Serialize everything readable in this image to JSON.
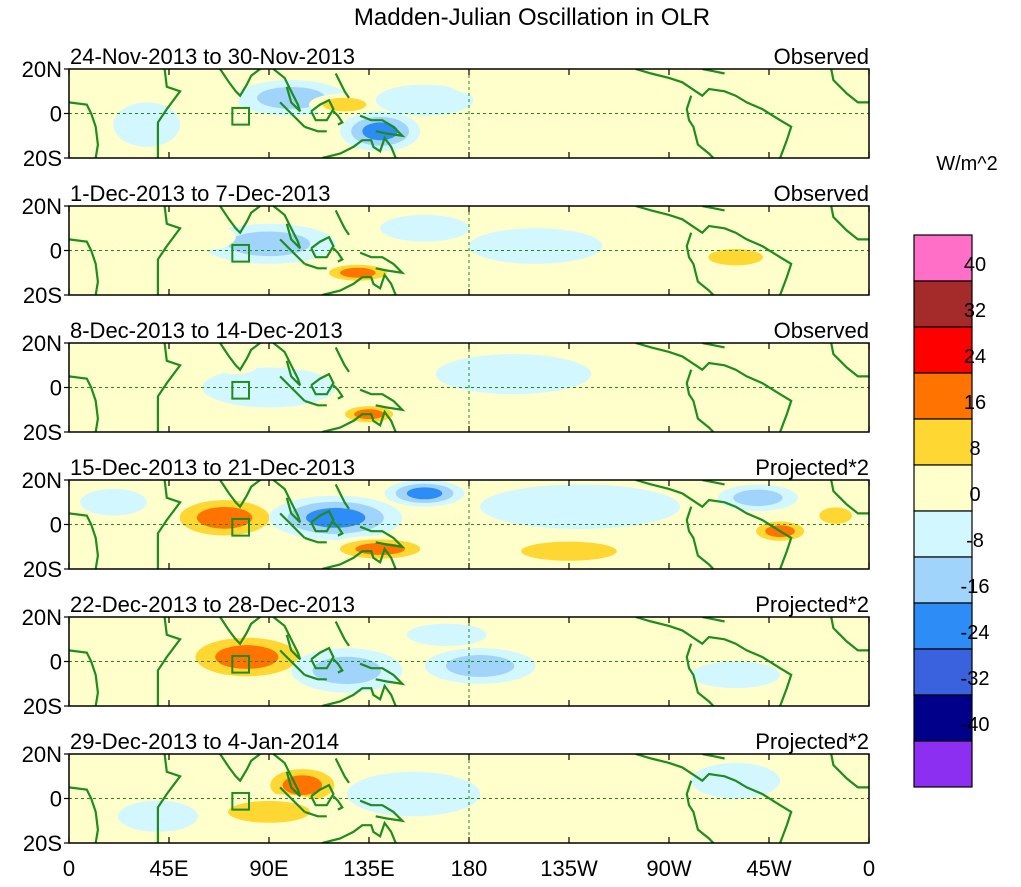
{
  "chart_data": {
    "type": "heatmap",
    "title": "Madden-Julian Oscillation in OLR",
    "units_label": "W/m^2",
    "x_tick_labels": [
      "0",
      "45E",
      "90E",
      "135E",
      "180",
      "135W",
      "90W",
      "45W",
      "0"
    ],
    "x_ticks_lon": [
      0,
      45,
      90,
      135,
      180,
      225,
      270,
      315,
      360
    ],
    "xlim": [
      0,
      360
    ],
    "y_tick_labels": [
      "20N",
      "0",
      "20S"
    ],
    "ylim": [
      -20,
      20
    ],
    "colorbar": {
      "levels": [
        "40",
        "32",
        "24",
        "16",
        "8",
        "0",
        "-8",
        "-16",
        "-24",
        "-32",
        "-40"
      ],
      "colors": [
        "#ff6ec7",
        "#a52a2a",
        "#ff0000",
        "#ff7400",
        "#ffd733",
        "#ffffcc",
        "#d2f7ff",
        "#a0d4fa",
        "#2d8cf5",
        "#3a62de",
        "#00008b",
        "#8c2ff0"
      ]
    },
    "panels": [
      {
        "period": "24-Nov-2013 to 30-Nov-2013",
        "label": "Observed",
        "anomalies": [
          {
            "lon": 100,
            "lat": 7,
            "rlon": 25,
            "rlat": 8,
            "value": -10
          },
          {
            "lon": 140,
            "lat": -8,
            "rlon": 18,
            "rlat": 9,
            "value": -18
          },
          {
            "lon": 124,
            "lat": 4,
            "rlon": 16,
            "rlat": 5,
            "value": 10
          },
          {
            "lon": 160,
            "lat": 6,
            "rlon": 22,
            "rlat": 7,
            "value": -6
          },
          {
            "lon": 200,
            "lat": 14,
            "rlon": 30,
            "rlat": 7,
            "value": 5
          },
          {
            "lon": 270,
            "lat": 12,
            "rlon": 25,
            "rlat": 8,
            "value": 5
          },
          {
            "lon": 300,
            "lat": -4,
            "rlon": 18,
            "rlat": 6,
            "value": 7
          },
          {
            "lon": 35,
            "lat": -5,
            "rlon": 15,
            "rlat": 10,
            "value": -5
          },
          {
            "lon": 65,
            "lat": 8,
            "rlon": 12,
            "rlat": 6,
            "value": 4
          }
        ]
      },
      {
        "period": "1-Dec-2013 to 7-Dec-2013",
        "label": "Observed",
        "anomalies": [
          {
            "lon": 90,
            "lat": 3,
            "rlon": 30,
            "rlat": 9,
            "value": -10
          },
          {
            "lon": 130,
            "lat": -10,
            "rlon": 18,
            "rlat": 5,
            "value": 18
          },
          {
            "lon": 210,
            "lat": 2,
            "rlon": 30,
            "rlat": 8,
            "value": -6
          },
          {
            "lon": 300,
            "lat": -3,
            "rlon": 20,
            "rlat": 6,
            "value": 10
          },
          {
            "lon": 60,
            "lat": 6,
            "rlon": 15,
            "rlat": 6,
            "value": 5
          },
          {
            "lon": 330,
            "lat": 14,
            "rlon": 15,
            "rlat": 5,
            "value": 6
          },
          {
            "lon": 160,
            "lat": 10,
            "rlon": 20,
            "rlat": 6,
            "value": -6
          }
        ]
      },
      {
        "period": "8-Dec-2013 to 14-Dec-2013",
        "label": "Observed",
        "anomalies": [
          {
            "lon": 90,
            "lat": 0,
            "rlon": 30,
            "rlat": 9,
            "value": -8
          },
          {
            "lon": 135,
            "lat": -12,
            "rlon": 15,
            "rlat": 5,
            "value": 18
          },
          {
            "lon": 200,
            "lat": 6,
            "rlon": 35,
            "rlat": 9,
            "value": -5
          },
          {
            "lon": 75,
            "lat": 10,
            "rlon": 10,
            "rlat": 4,
            "value": 6
          },
          {
            "lon": 310,
            "lat": -8,
            "rlon": 12,
            "rlat": 5,
            "value": 6
          }
        ]
      },
      {
        "period": "15-Dec-2013 to 21-Dec-2013",
        "label": "Projected*2",
        "anomalies": [
          {
            "lon": 70,
            "lat": 3,
            "rlon": 28,
            "rlat": 11,
            "value": 18
          },
          {
            "lon": 120,
            "lat": 3,
            "rlon": 30,
            "rlat": 10,
            "value": -20
          },
          {
            "lon": 160,
            "lat": 14,
            "rlon": 18,
            "rlat": 6,
            "value": -18
          },
          {
            "lon": 140,
            "lat": -11,
            "rlon": 25,
            "rlat": 6,
            "value": 22
          },
          {
            "lon": 230,
            "lat": 8,
            "rlon": 45,
            "rlat": 10,
            "value": -8
          },
          {
            "lon": 225,
            "lat": -12,
            "rlon": 35,
            "rlat": 7,
            "value": 10
          },
          {
            "lon": 320,
            "lat": -3,
            "rlon": 15,
            "rlat": 6,
            "value": 18
          },
          {
            "lon": 345,
            "lat": 4,
            "rlon": 12,
            "rlat": 6,
            "value": 14
          },
          {
            "lon": 310,
            "lat": 12,
            "rlon": 18,
            "rlat": 6,
            "value": -12
          },
          {
            "lon": 20,
            "lat": 10,
            "rlon": 15,
            "rlat": 6,
            "value": -8
          }
        ]
      },
      {
        "period": "22-Dec-2013 to 28-Dec-2013",
        "label": "Projected*2",
        "anomalies": [
          {
            "lon": 80,
            "lat": 2,
            "rlon": 32,
            "rlat": 12,
            "value": 20
          },
          {
            "lon": 125,
            "lat": -4,
            "rlon": 25,
            "rlat": 10,
            "value": -14
          },
          {
            "lon": 185,
            "lat": -2,
            "rlon": 25,
            "rlat": 8,
            "value": -10
          },
          {
            "lon": 245,
            "lat": 2,
            "rlon": 30,
            "rlat": 9,
            "value": 6
          },
          {
            "lon": 300,
            "lat": -6,
            "rlon": 20,
            "rlat": 6,
            "value": -6
          },
          {
            "lon": 20,
            "lat": 8,
            "rlon": 15,
            "rlat": 6,
            "value": 6
          },
          {
            "lon": 170,
            "lat": 12,
            "rlon": 18,
            "rlat": 5,
            "value": -6
          }
        ]
      },
      {
        "period": "29-Dec-2013 to 4-Jan-2014",
        "label": "Projected*2",
        "anomalies": [
          {
            "lon": 105,
            "lat": 6,
            "rlon": 20,
            "rlat": 10,
            "value": 20
          },
          {
            "lon": 90,
            "lat": -6,
            "rlon": 30,
            "rlat": 8,
            "value": 10
          },
          {
            "lon": 155,
            "lat": 2,
            "rlon": 30,
            "rlat": 10,
            "value": -8
          },
          {
            "lon": 40,
            "lat": -8,
            "rlon": 18,
            "rlat": 7,
            "value": -6
          },
          {
            "lon": 240,
            "lat": -2,
            "rlon": 40,
            "rlat": 9,
            "value": 5
          },
          {
            "lon": 300,
            "lat": 8,
            "rlon": 20,
            "rlat": 8,
            "value": -5
          }
        ]
      }
    ]
  }
}
